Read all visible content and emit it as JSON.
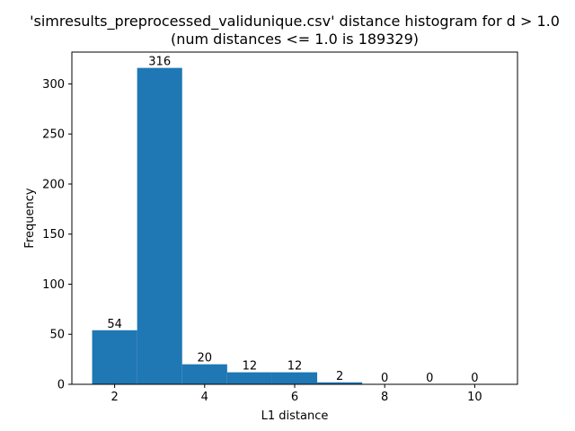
{
  "chart_data": {
    "type": "bar",
    "title": "'simresults_preprocessed_validunique.csv' distance histogram for d > 1.0",
    "subtitle": "(num distances <= 1.0 is 189329)",
    "xlabel": "L1 distance",
    "ylabel": "Frequency",
    "bins": [
      {
        "from": 1.5,
        "to": 2.5,
        "value": 54
      },
      {
        "from": 2.5,
        "to": 3.5,
        "value": 316
      },
      {
        "from": 3.5,
        "to": 4.5,
        "value": 20
      },
      {
        "from": 4.5,
        "to": 5.5,
        "value": 12
      },
      {
        "from": 5.5,
        "to": 6.5,
        "value": 12
      },
      {
        "from": 6.5,
        "to": 7.5,
        "value": 2
      },
      {
        "from": 7.5,
        "to": 8.5,
        "value": 0
      },
      {
        "from": 8.5,
        "to": 9.5,
        "value": 0
      },
      {
        "from": 9.5,
        "to": 10.5,
        "value": 0
      }
    ],
    "xlim": [
      1.05,
      10.95
    ],
    "ylim": [
      0,
      331.8
    ],
    "xticks": [
      2,
      4,
      6,
      8,
      10
    ],
    "yticks": [
      0,
      50,
      100,
      150,
      200,
      250,
      300
    ],
    "bar_color": "#1f77b4",
    "grid": false,
    "legend": "none"
  }
}
